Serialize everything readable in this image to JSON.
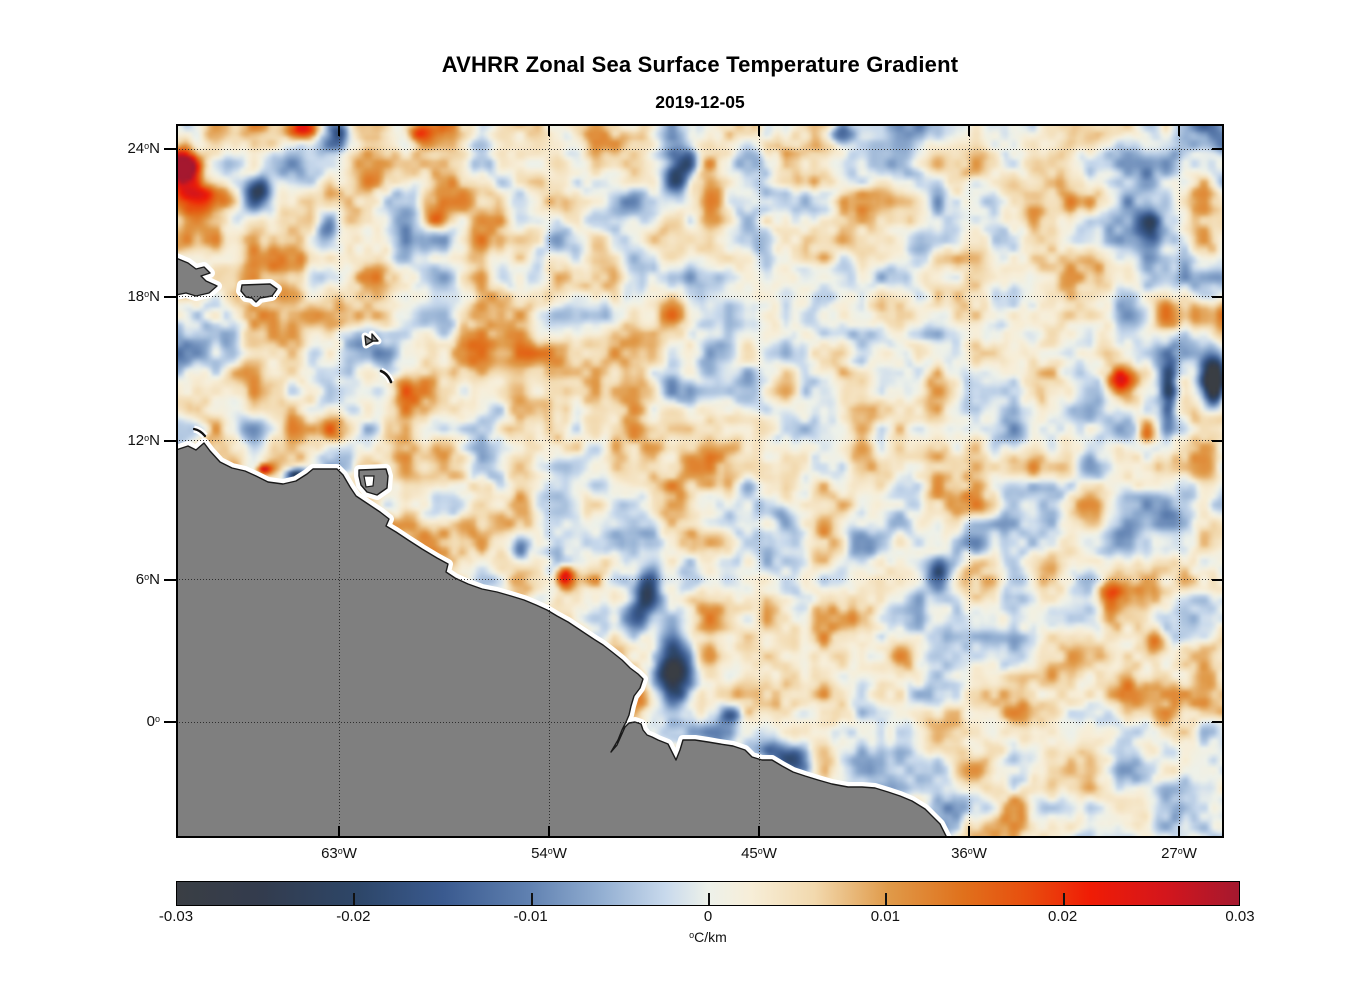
{
  "title": "AVHRR Zonal Sea Surface Temperature Gradient",
  "subtitle": "2019-12-05",
  "chart_data": {
    "type": "heatmap",
    "title": "AVHRR Zonal Sea Surface Temperature Gradient",
    "date": "2019-12-05",
    "projection": "mercator-like lat/lon map",
    "lon_range": [
      -70,
      -25
    ],
    "lat_range": [
      -5,
      25
    ],
    "grid": "dotted graticule every 9 deg lon / 6 deg lat",
    "x_ticks": [
      {
        "num": "63",
        "sup": "o",
        "dir": "W",
        "lon": -63
      },
      {
        "num": "54",
        "sup": "o",
        "dir": "W",
        "lon": -54
      },
      {
        "num": "45",
        "sup": "o",
        "dir": "W",
        "lon": -45
      },
      {
        "num": "36",
        "sup": "o",
        "dir": "W",
        "lon": -36
      },
      {
        "num": "27",
        "sup": "o",
        "dir": "W",
        "lon": -27
      }
    ],
    "y_ticks": [
      {
        "num": "24",
        "sup": "o",
        "dir": "N",
        "lat": 24
      },
      {
        "num": "18",
        "sup": "o",
        "dir": "N",
        "lat": 18
      },
      {
        "num": "12",
        "sup": "o",
        "dir": "N",
        "lat": 12
      },
      {
        "num": "6",
        "sup": "o",
        "dir": "N",
        "lat": 6
      },
      {
        "num": "0",
        "sup": "o",
        "dir": "",
        "lat": 0
      }
    ],
    "colorbar": {
      "min": -0.03,
      "max": 0.03,
      "ticks": [
        {
          "v": -0.03,
          "label": "-0.03"
        },
        {
          "v": -0.02,
          "label": "-0.02"
        },
        {
          "v": -0.01,
          "label": "-0.01"
        },
        {
          "v": 0,
          "label": "0"
        },
        {
          "v": 0.01,
          "label": "0.01"
        },
        {
          "v": 0.02,
          "label": "0.02"
        },
        {
          "v": 0.03,
          "label": "0.03"
        }
      ],
      "units_sup": "o",
      "units_main": "C/km",
      "colormap_name": "balance (blue-white-red diverging)",
      "stops": [
        [
          0.0,
          "#3a3e44"
        ],
        [
          0.08,
          "#333c4e"
        ],
        [
          0.17,
          "#2d4668"
        ],
        [
          0.25,
          "#3a5a8f"
        ],
        [
          0.33,
          "#5f80b0"
        ],
        [
          0.4,
          "#93afd2"
        ],
        [
          0.46,
          "#c8d9ec"
        ],
        [
          0.5,
          "#edf1ea"
        ],
        [
          0.54,
          "#f7eed8"
        ],
        [
          0.6,
          "#f2d9ae"
        ],
        [
          0.67,
          "#e09a49"
        ],
        [
          0.74,
          "#e0711c"
        ],
        [
          0.8,
          "#e84e0e"
        ],
        [
          0.86,
          "#f01c05"
        ],
        [
          0.93,
          "#d4161c"
        ],
        [
          1.0,
          "#a5182f"
        ]
      ]
    },
    "land_color": "#7f7f7f",
    "coast_halo_color": "#ffffff",
    "land_regions": [
      "South America (Venezuela to northeast Brazil coast)",
      "Hispaniola (eastern tip)",
      "Puerto Rico",
      "Trinidad",
      "Guadeloupe",
      "Martinique",
      "Curacao"
    ],
    "noise": {
      "seed": 7,
      "amplitude": 0.009,
      "bias": 0.0012,
      "octaves": [
        [
          220,
          0.33
        ],
        [
          38,
          1.0
        ],
        [
          19,
          0.55
        ],
        [
          9.5,
          0.3
        ]
      ]
    },
    "features": [
      {
        "lon": -69.7,
        "lat": 23.3,
        "amp": 0.04,
        "rx": 0.65,
        "ry": 0.75,
        "rot": 0
      },
      {
        "lon": -69.2,
        "lat": 22.2,
        "amp": 0.016,
        "rx": 1.1,
        "ry": 0.8,
        "rot": 0
      },
      {
        "lon": -66.5,
        "lat": 22.4,
        "amp": -0.015,
        "rx": 0.5,
        "ry": 0.5,
        "rot": 0
      },
      {
        "lon": -64.6,
        "lat": 24.9,
        "amp": 0.018,
        "rx": 0.8,
        "ry": 0.45,
        "rot": 0
      },
      {
        "lon": -63.1,
        "lat": 24.8,
        "amp": -0.014,
        "rx": 0.5,
        "ry": 0.45,
        "rot": 0
      },
      {
        "lon": -59.6,
        "lat": 24.8,
        "amp": 0.02,
        "rx": 0.7,
        "ry": 0.5,
        "rot": 0
      },
      {
        "lon": -63.5,
        "lat": 21.0,
        "amp": -0.013,
        "rx": 0.45,
        "ry": 0.8,
        "rot": 10
      },
      {
        "lon": -59.0,
        "lat": 21.2,
        "amp": 0.013,
        "rx": 0.5,
        "ry": 0.5,
        "rot": 0
      },
      {
        "lon": -48.4,
        "lat": 23.2,
        "amp": -0.017,
        "rx": 0.55,
        "ry": 1.2,
        "rot": 20
      },
      {
        "lon": -41.6,
        "lat": 24.6,
        "amp": -0.015,
        "rx": 0.55,
        "ry": 0.5,
        "rot": 0
      },
      {
        "lon": -28.3,
        "lat": 20.9,
        "amp": -0.017,
        "rx": 0.5,
        "ry": 0.8,
        "rot": 0
      },
      {
        "lon": -25.6,
        "lat": 14.5,
        "amp": -0.045,
        "rx": 0.55,
        "ry": 0.95,
        "rot": 0
      },
      {
        "lon": -24.9,
        "lat": 14.5,
        "amp": 0.04,
        "rx": 0.22,
        "ry": 0.85,
        "rot": 0
      },
      {
        "lon": -27.5,
        "lat": 14.2,
        "amp": -0.016,
        "rx": 0.35,
        "ry": 1.5,
        "rot": 0
      },
      {
        "lon": -29.6,
        "lat": 14.6,
        "amp": 0.02,
        "rx": 0.65,
        "ry": 0.55,
        "rot": 0
      },
      {
        "lon": -28.5,
        "lat": 12.4,
        "amp": 0.016,
        "rx": 0.45,
        "ry": 0.6,
        "rot": 0
      },
      {
        "lon": -64.9,
        "lat": 10.55,
        "amp": -0.03,
        "rx": 0.5,
        "ry": 0.3,
        "rot": 0
      },
      {
        "lon": -66.3,
        "lat": 10.8,
        "amp": 0.022,
        "rx": 0.3,
        "ry": 0.22,
        "rot": 0
      },
      {
        "lon": -53.4,
        "lat": 6.1,
        "amp": 0.028,
        "rx": 0.4,
        "ry": 0.5,
        "rot": 0
      },
      {
        "lon": -49.9,
        "lat": 5.5,
        "amp": -0.018,
        "rx": 0.45,
        "ry": 1.2,
        "rot": 15
      },
      {
        "lon": -48.7,
        "lat": 2.3,
        "amp": -0.03,
        "rx": 0.8,
        "ry": 1.3,
        "rot": 0
      },
      {
        "lon": -46.3,
        "lat": 0.3,
        "amp": -0.013,
        "rx": 0.5,
        "ry": 0.4,
        "rot": 0
      },
      {
        "lon": -43.8,
        "lat": -1.5,
        "amp": -0.02,
        "rx": 1.2,
        "ry": 0.5,
        "rot": 25
      },
      {
        "lon": -37.3,
        "lat": 6.6,
        "amp": -0.014,
        "rx": 0.6,
        "ry": 0.6,
        "rot": 0
      },
      {
        "lon": -30.1,
        "lat": 5.4,
        "amp": 0.015,
        "rx": 0.7,
        "ry": 0.6,
        "rot": 0
      },
      {
        "lon": -28.1,
        "lat": 3.4,
        "amp": 0.015,
        "rx": 0.5,
        "ry": 0.55,
        "rot": 0
      },
      {
        "lon": -55.3,
        "lat": 7.2,
        "amp": -0.013,
        "rx": 0.4,
        "ry": 0.6,
        "rot": 0
      },
      {
        "lon": -44.1,
        "lat": 9.0,
        "amp": -0.012,
        "rx": 0.5,
        "ry": 0.5,
        "rot": 0
      }
    ]
  }
}
